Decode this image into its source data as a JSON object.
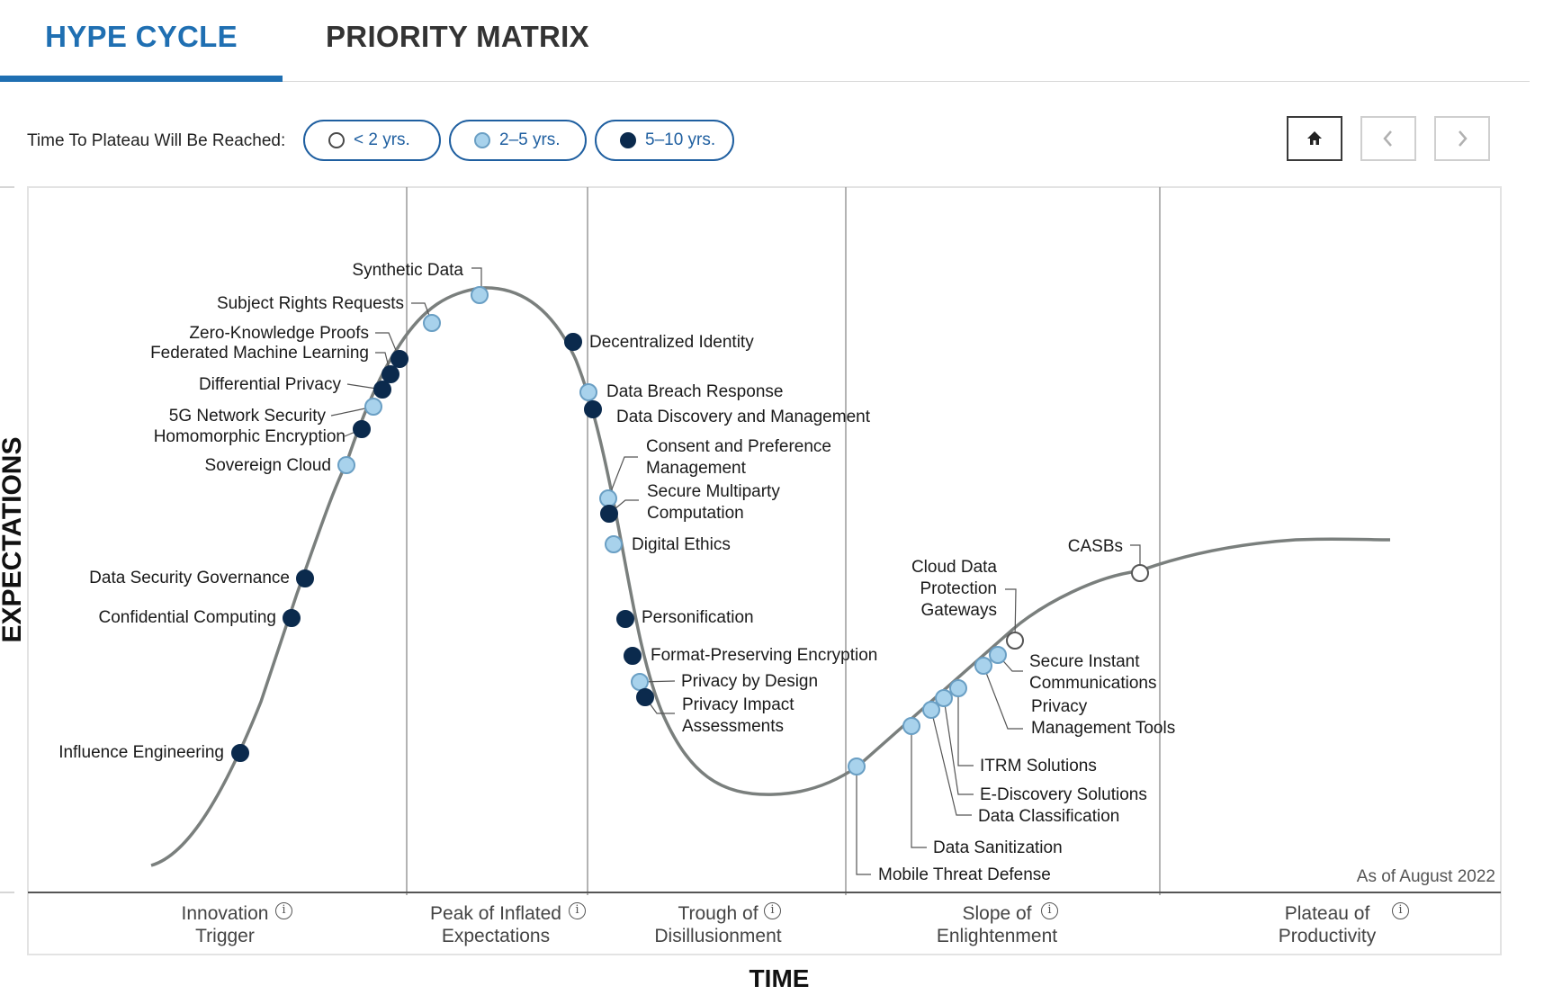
{
  "tabs": [
    {
      "label": "HYPE CYCLE",
      "active": true
    },
    {
      "label": "PRIORITY MATRIX",
      "active": false
    }
  ],
  "legend": {
    "label": "Time To Plateau Will Be Reached:",
    "items": [
      {
        "label": "< 2 yrs.",
        "fill": "#ffffff"
      },
      {
        "label": "2–5 yrs.",
        "fill": "#a8d2ec"
      },
      {
        "label": "5–10 yrs.",
        "fill": "#0b2a4d"
      }
    ]
  },
  "controls": {
    "home_icon": "home-icon",
    "prev_icon": "chevron-left-icon",
    "next_icon": "chevron-right-icon"
  },
  "colors": {
    "accent": "#1f6fb2",
    "curve": "#7a7f7d",
    "dark_dot": "#0b2a4d",
    "light_dot": "#a8d2ec"
  },
  "chart_data": {
    "type": "scatter",
    "ylabel": "EXPECTATIONS",
    "xlabel": "TIME",
    "as_of": "As of August 2022",
    "phases": [
      {
        "label": "Innovation\nTrigger"
      },
      {
        "label": "Peak of Inflated\nExpectations"
      },
      {
        "label": "Trough of\nDisillusionment"
      },
      {
        "label": "Slope of\nEnlightenment"
      },
      {
        "label": "Plateau of\nProductivity"
      }
    ],
    "technologies": [
      {
        "name": "Influence Engineering",
        "time_to_plateau": "5–10 yrs."
      },
      {
        "name": "Confidential Computing",
        "time_to_plateau": "5–10 yrs."
      },
      {
        "name": "Data Security Governance",
        "time_to_plateau": "5–10 yrs."
      },
      {
        "name": "Sovereign Cloud",
        "time_to_plateau": "2–5 yrs."
      },
      {
        "name": "Homomorphic Encryption",
        "time_to_plateau": "5–10 yrs."
      },
      {
        "name": "5G Network Security",
        "time_to_plateau": "2–5 yrs."
      },
      {
        "name": "Differential Privacy",
        "time_to_plateau": "5–10 yrs."
      },
      {
        "name": "Federated Machine Learning",
        "time_to_plateau": "5–10 yrs."
      },
      {
        "name": "Zero-Knowledge Proofs",
        "time_to_plateau": "5–10 yrs."
      },
      {
        "name": "Subject Rights Requests",
        "time_to_plateau": "2–5 yrs."
      },
      {
        "name": "Synthetic Data",
        "time_to_plateau": "2–5 yrs."
      },
      {
        "name": "Decentralized Identity",
        "time_to_plateau": "5–10 yrs."
      },
      {
        "name": "Data Breach Response",
        "time_to_plateau": "2–5 yrs."
      },
      {
        "name": "Data Discovery and Management",
        "time_to_plateau": "5–10 yrs."
      },
      {
        "name": "Consent and Preference\nManagement",
        "time_to_plateau": "2–5 yrs."
      },
      {
        "name": "Secure Multiparty\nComputation",
        "time_to_plateau": "5–10 yrs."
      },
      {
        "name": "Digital Ethics",
        "time_to_plateau": "2–5 yrs."
      },
      {
        "name": "Personification",
        "time_to_plateau": "5–10 yrs."
      },
      {
        "name": "Format-Preserving Encryption",
        "time_to_plateau": "5–10 yrs."
      },
      {
        "name": "Privacy by Design",
        "time_to_plateau": "2–5 yrs."
      },
      {
        "name": "Privacy Impact\nAssessments",
        "time_to_plateau": "5–10 yrs."
      },
      {
        "name": "Mobile Threat Defense",
        "time_to_plateau": "2–5 yrs."
      },
      {
        "name": "Data Sanitization",
        "time_to_plateau": "2–5 yrs."
      },
      {
        "name": "Data Classification",
        "time_to_plateau": "2–5 yrs."
      },
      {
        "name": "E-Discovery Solutions",
        "time_to_plateau": "2–5 yrs."
      },
      {
        "name": "ITRM Solutions",
        "time_to_plateau": "2–5 yrs."
      },
      {
        "name": "Privacy\nManagement Tools",
        "time_to_plateau": "2–5 yrs."
      },
      {
        "name": "Secure Instant\nCommunications",
        "time_to_plateau": "2–5 yrs."
      },
      {
        "name": "Cloud Data\nProtection\nGateways",
        "time_to_plateau": "< 2 yrs."
      },
      {
        "name": "CASBs",
        "time_to_plateau": "< 2 yrs."
      }
    ]
  }
}
